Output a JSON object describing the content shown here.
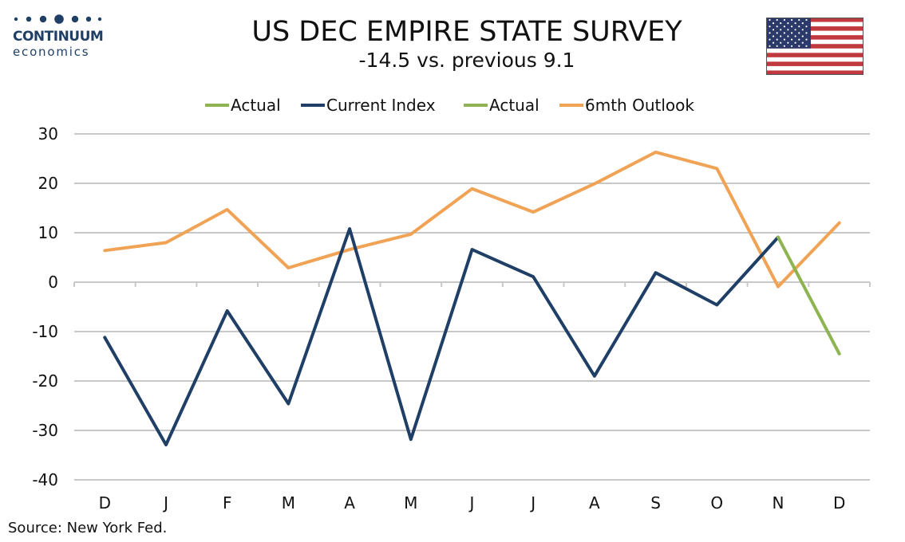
{
  "brand": {
    "name": "CONTINUUM",
    "sub": "economics"
  },
  "header": {
    "title": "US DEC EMPIRE STATE SURVEY",
    "subtitle": "-14.5 vs. previous 9.1"
  },
  "source": "Source: New York Fed.",
  "colors": {
    "actual": "#8db451",
    "current": "#1f3f66",
    "outlook": "#f0a255",
    "grid": "#c8c8c8",
    "brand": "#1f3f66"
  },
  "chart_data": {
    "type": "line",
    "categories": [
      "D",
      "J",
      "F",
      "M",
      "A",
      "M",
      "J",
      "J",
      "A",
      "S",
      "O",
      "N",
      "D"
    ],
    "ylim": [
      -40,
      30
    ],
    "yticks": [
      30,
      20,
      10,
      0,
      -10,
      -20,
      -30,
      -40
    ],
    "grid": true,
    "legend_position": "top",
    "legend": [
      "Actual",
      "Current Index",
      "Actual",
      "6mth Outlook"
    ],
    "series": [
      {
        "name": "Actual",
        "color": "#8db451",
        "values": [
          null,
          null,
          null,
          null,
          null,
          null,
          null,
          null,
          null,
          null,
          null,
          null,
          null
        ]
      },
      {
        "name": "Current Index",
        "color": "#1f3f66",
        "values": [
          -11.2,
          -32.9,
          -5.8,
          -24.6,
          10.8,
          -31.8,
          6.6,
          1.1,
          -19.0,
          1.9,
          -4.6,
          9.1,
          null
        ]
      },
      {
        "name": "Actual",
        "color": "#8db451",
        "values": [
          null,
          null,
          null,
          null,
          null,
          null,
          null,
          null,
          null,
          null,
          null,
          9.1,
          -14.5
        ]
      },
      {
        "name": "6mth Outlook",
        "color": "#f0a255",
        "values": [
          6.4,
          8.0,
          14.7,
          2.9,
          6.6,
          9.7,
          18.9,
          14.2,
          19.9,
          26.3,
          23.0,
          -0.9,
          12.0
        ]
      }
    ]
  }
}
